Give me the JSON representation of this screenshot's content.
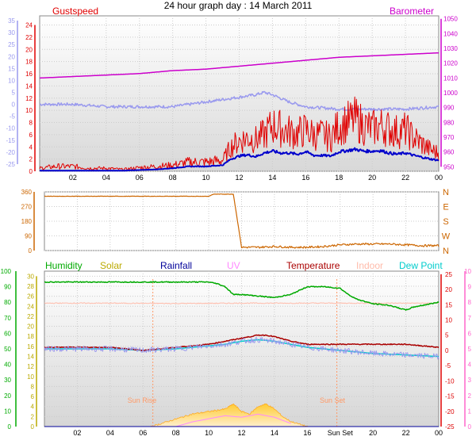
{
  "title": "24 hour graph day : 14 March 2011",
  "x_ticks": [
    "02",
    "04",
    "06",
    "08",
    "10",
    "12",
    "14",
    "16",
    "Sun Set",
    "20",
    "22",
    "00"
  ],
  "x_ticks_top": [
    "02",
    "04",
    "06",
    "08",
    "10",
    "12",
    "14",
    "16",
    "18",
    "20",
    "22",
    "00"
  ],
  "colors": {
    "gust": "#e00000",
    "wind": "#0000cc",
    "barometer": "#cc00cc",
    "temp_top": "#9999ee",
    "direction": "#cc6600",
    "humidity": "#00aa00",
    "solar": "#bbaa00",
    "rainfall": "#000099",
    "uv": "#ff88ff",
    "temperature": "#aa0000",
    "indoor": "#ffbbaa",
    "dew_point": "#00cccc",
    "sun_marker": "#ff9966"
  },
  "chart_data": [
    {
      "type": "line",
      "title": "24 hour graph day : 14 March 2011",
      "xlabel": "",
      "ylabel": "",
      "x_unit": "hour",
      "xlim": [
        0,
        24
      ],
      "legend": [
        "Gustspeed",
        "Barometer"
      ],
      "left_axis_inner": {
        "ticks": [
          0,
          2,
          4,
          6,
          8,
          10,
          12,
          14,
          16,
          18,
          20,
          22,
          24
        ],
        "range": [
          0,
          25.5
        ]
      },
      "left_axis_outer": {
        "ticks": [
          -25,
          -20,
          -15,
          -10,
          -5,
          0,
          5,
          10,
          15,
          20,
          25,
          30,
          35
        ],
        "range": [
          -28,
          37
        ]
      },
      "right_axis": {
        "ticks": [
          950,
          960,
          970,
          980,
          990,
          1000,
          1010,
          1020,
          1030,
          1040,
          1050
        ],
        "range": [
          947,
          1052
        ]
      },
      "series": [
        {
          "name": "Gustspeed",
          "axis": "left_inner",
          "x": [
            0,
            1,
            2,
            3,
            4,
            5,
            6,
            7,
            8,
            9,
            10,
            11,
            11.5,
            12,
            12.5,
            13,
            13.5,
            14,
            14.5,
            15,
            15.5,
            16,
            16.5,
            17,
            17.5,
            18,
            18.5,
            19,
            19.5,
            20,
            20.5,
            21,
            21.5,
            22,
            22.5,
            23,
            23.5,
            24
          ],
          "values": [
            0.5,
            0.8,
            0.8,
            0.5,
            0.5,
            0.3,
            0.6,
            0.8,
            1.0,
            1.5,
            1.5,
            1.8,
            4.0,
            5.0,
            5.5,
            5.2,
            6.0,
            7.5,
            7.0,
            6.5,
            6.2,
            6.8,
            6.0,
            6.0,
            5.5,
            7.5,
            8.0,
            8.5,
            7.5,
            7.0,
            7.5,
            7.0,
            6.5,
            6.8,
            5.5,
            4.5,
            3.5,
            3.0
          ]
        },
        {
          "name": "Windspeed",
          "axis": "left_inner",
          "x": [
            0,
            1,
            2,
            3,
            4,
            5,
            6,
            7,
            8,
            9,
            10,
            11,
            11.5,
            12,
            12.5,
            13,
            13.5,
            14,
            14.5,
            15,
            15.5,
            16,
            16.5,
            17,
            17.5,
            18,
            18.5,
            19,
            19.5,
            20,
            20.5,
            21,
            21.5,
            22,
            22.5,
            23,
            23.5,
            24
          ],
          "values": [
            0.1,
            0.1,
            0.1,
            0.1,
            0.1,
            0.1,
            0.2,
            0.3,
            0.5,
            0.8,
            0.8,
            1.0,
            2.0,
            2.5,
            2.7,
            2.4,
            3.0,
            3.3,
            3.0,
            3.0,
            2.8,
            3.2,
            2.6,
            2.6,
            2.5,
            3.2,
            3.4,
            3.6,
            3.3,
            3.3,
            3.4,
            3.0,
            2.8,
            3.0,
            2.6,
            2.3,
            2.0,
            1.8
          ]
        },
        {
          "name": "Barometer",
          "axis": "right",
          "x": [
            0,
            2,
            4,
            6,
            8,
            10,
            12,
            14,
            16,
            18,
            20,
            22,
            24
          ],
          "values": [
            1010,
            1011,
            1012,
            1013,
            1015,
            1016,
            1018,
            1020,
            1022,
            1024,
            1025,
            1026,
            1027
          ]
        },
        {
          "name": "Temperature",
          "axis": "left_outer",
          "x": [
            0,
            2,
            4,
            6,
            8,
            10,
            11,
            12,
            13,
            13.5,
            14,
            15,
            16,
            18,
            20,
            22,
            24
          ],
          "values": [
            0,
            0,
            -1,
            -1,
            -1,
            1,
            2,
            3,
            4,
            5,
            4,
            1,
            -1,
            -2,
            -2,
            -2,
            -1
          ]
        }
      ]
    },
    {
      "type": "line",
      "title": "",
      "xlabel": "",
      "ylabel": "",
      "xlim": [
        0,
        24
      ],
      "left_axis": {
        "ticks": [
          0,
          90,
          180,
          270,
          360
        ],
        "range": [
          0,
          360
        ]
      },
      "right_axis_labels": [
        "N",
        "W",
        "S",
        "E",
        "N"
      ],
      "series": [
        {
          "name": "Wind Direction",
          "x": [
            0,
            1,
            2,
            3,
            4,
            5,
            6,
            7,
            8,
            9,
            10,
            10.3,
            11,
            11.5,
            12,
            13,
            14,
            15,
            16,
            17,
            18,
            19,
            20,
            21,
            22,
            23,
            24
          ],
          "values": [
            333,
            333,
            333,
            333,
            333,
            333,
            333,
            333,
            333,
            333,
            333,
            346,
            346,
            346,
            20,
            20,
            25,
            20,
            20,
            25,
            35,
            40,
            40,
            40,
            35,
            30,
            30
          ]
        }
      ]
    },
    {
      "type": "line",
      "title": "",
      "xlabel": "",
      "ylabel": "",
      "xlim": [
        0,
        24
      ],
      "legend": [
        "Humidity",
        "Solar",
        "Rainfall",
        "UV",
        "Temperature",
        "Indoor",
        "Dew Point"
      ],
      "left_axis_outer": {
        "ticks": [
          0,
          10,
          20,
          30,
          40,
          50,
          60,
          70,
          80,
          90,
          100
        ],
        "range": [
          0,
          100
        ]
      },
      "left_axis_inner": {
        "ticks": [
          0,
          2,
          4,
          6,
          8,
          10,
          12,
          14,
          16,
          18,
          20,
          22,
          24,
          26,
          28,
          30
        ],
        "range": [
          0,
          31
        ]
      },
      "right_axis_inner": {
        "ticks": [
          -25,
          -20,
          -15,
          -10,
          -5,
          0,
          5,
          10,
          15,
          20,
          25
        ],
        "range": [
          -25,
          26
        ]
      },
      "right_axis_outer": {
        "ticks": [
          0,
          1,
          2,
          3,
          4,
          5,
          6,
          7,
          8,
          9,
          10
        ],
        "range": [
          0,
          10
        ]
      },
      "annotations": [
        "Sun Rise",
        "Sun Set"
      ],
      "series": [
        {
          "name": "Humidity",
          "axis": "left_outer",
          "x": [
            0,
            2,
            4,
            6,
            8,
            10,
            10.5,
            11,
            11.5,
            12,
            13,
            14,
            15,
            16,
            17,
            18,
            18.5,
            19,
            20,
            21,
            22,
            22.5,
            23,
            24
          ],
          "values": [
            93,
            93,
            93,
            93,
            93,
            93,
            92,
            90,
            85,
            85,
            84,
            83,
            85,
            90,
            90,
            89,
            85,
            82,
            79,
            78,
            75,
            77,
            78,
            80
          ]
        },
        {
          "name": "Indoor",
          "axis": "right_inner",
          "x": [
            0,
            4,
            8,
            12,
            16,
            20,
            24
          ],
          "values": [
            15.5,
            15.5,
            15.4,
            15.5,
            15.5,
            15.5,
            15.5
          ]
        },
        {
          "name": "Temperature",
          "axis": "right_inner",
          "x": [
            0,
            2,
            4,
            6,
            8,
            10,
            11,
            12,
            13,
            13.5,
            14,
            15,
            16,
            18,
            20,
            22,
            24
          ],
          "values": [
            1,
            1,
            1,
            0,
            1,
            2,
            3,
            4,
            5,
            5,
            4.5,
            3,
            2,
            2,
            2,
            2,
            1
          ]
        },
        {
          "name": "Dew Point",
          "axis": "right_inner",
          "x": [
            0,
            2,
            4,
            6,
            8,
            10,
            11,
            12,
            13,
            14,
            15,
            16,
            18,
            20,
            22,
            24
          ],
          "values": [
            0.5,
            0.5,
            0.5,
            0,
            0.5,
            1.5,
            2,
            3,
            3.5,
            3,
            2,
            1,
            0,
            -1,
            -1.5,
            -2
          ]
        },
        {
          "name": "Solar",
          "axis": "left_inner",
          "x": [
            6.5,
            7,
            8,
            9,
            10,
            11,
            11.5,
            12,
            12.5,
            13,
            13.5,
            14,
            14.5,
            15,
            15.5,
            16
          ],
          "values": [
            0,
            0.5,
            1.5,
            2.5,
            3,
            3.5,
            4.5,
            3,
            2.5,
            4,
            4.5,
            3.5,
            2,
            1,
            0.5,
            0
          ]
        },
        {
          "name": "UV",
          "axis": "right_outer",
          "x": [
            8,
            9,
            10,
            11,
            12,
            13,
            14,
            15
          ],
          "values": [
            0,
            0.3,
            0.5,
            0.7,
            0.6,
            0.8,
            0.6,
            0.2
          ]
        },
        {
          "name": "Rainfall",
          "axis": "left_inner",
          "x": [
            0,
            24
          ],
          "values": [
            0,
            0
          ]
        }
      ]
    }
  ]
}
